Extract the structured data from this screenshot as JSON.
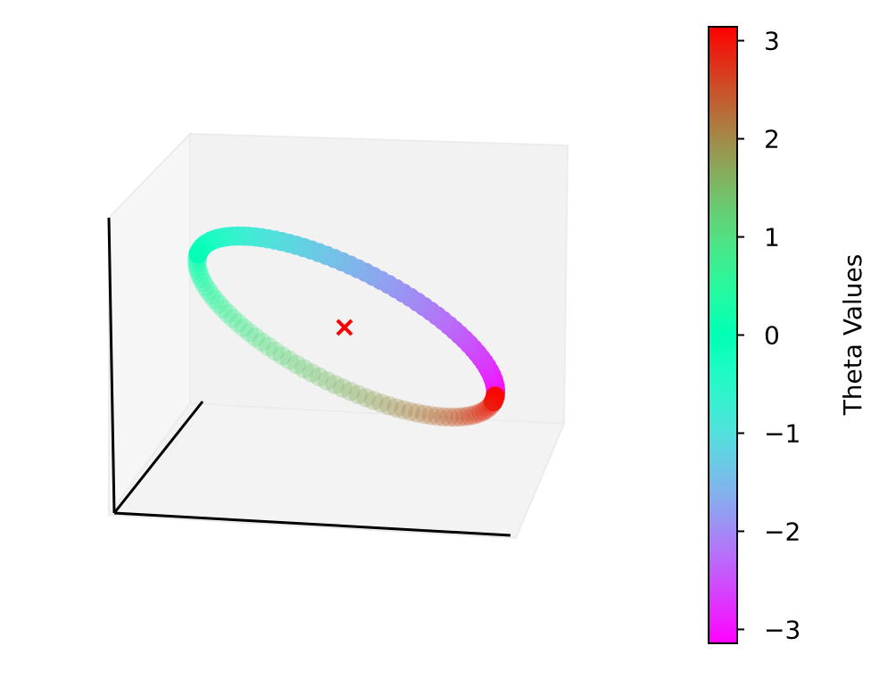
{
  "chart_data": {
    "type": "scatter",
    "projection": "3d",
    "axes_ticks_visible": false,
    "series": [
      {
        "kind": "ring-of-points",
        "color_by": "theta",
        "colormap": "rainbow",
        "theta_range": [
          -3.14159,
          3.14159
        ],
        "point_count": 120,
        "near_side_opacity": 0.3,
        "far_side_opacity": 1.0
      },
      {
        "kind": "center-marker",
        "marker": "x",
        "color": "#ff0000"
      }
    ],
    "colorbar": {
      "label": "Theta Values",
      "ticks": [
        "3",
        "2",
        "1",
        "0",
        "−1",
        "−2",
        "−3"
      ],
      "tick_values": [
        3,
        2,
        1,
        0,
        -1,
        -2,
        -3
      ],
      "range": [
        -3.14159,
        3.14159
      ],
      "colormap": "rainbow"
    },
    "pane_color": "#f2f2f2",
    "axis_line_color": "#000000"
  }
}
